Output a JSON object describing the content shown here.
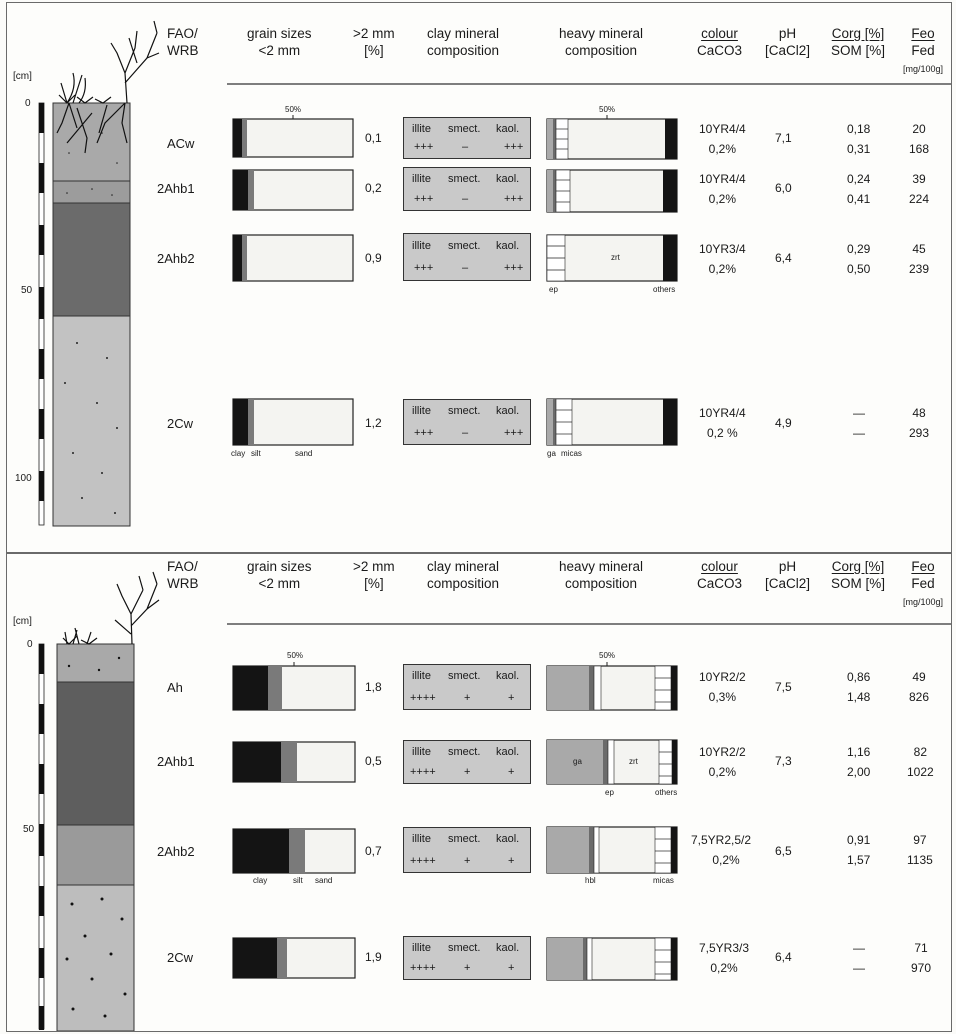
{
  "headers": {
    "fao_wrb": "FAO/\nWRB",
    "grain_sizes": "grain sizes\n<2 mm",
    "coarse": ">2 mm\n[%]",
    "clay_mineral": "clay mineral\ncomposition",
    "heavy_mineral": "heavy mineral\ncomposition",
    "colour": "colour",
    "caco3": "CaCO3",
    "ph": "pH",
    "cacl2": "[CaCl2]",
    "corg": "Corg [%]",
    "som": "SOM [%]",
    "feo": "Feo",
    "fed": "Fed",
    "fe_unit": "[mg/100g]",
    "cm": "[cm]"
  },
  "labels": {
    "fifty": "50%",
    "illite": "illite",
    "smect": "smect.",
    "kaol": "kaol.",
    "clay": "clay",
    "silt": "silt",
    "sand": "sand",
    "ep": "ep",
    "others": "others",
    "zrt": "zrt",
    "ga": "ga",
    "micas": "micas",
    "hbl": "hbl",
    "dash": "—"
  },
  "profile1": {
    "depth_ticks": [
      "0",
      "50",
      "100"
    ],
    "horizons": [
      {
        "name": "ACw",
        "coarse": "0,1",
        "cm": [
          "+++",
          "–",
          "+++"
        ],
        "colour": "10YR4/4",
        "caco3": "0,2%",
        "ph": "7,1",
        "corg": "0,18",
        "som": "0,31",
        "feo": "20",
        "fed": "168",
        "clay": 6,
        "silt": 3
      },
      {
        "name": "2Ahb1",
        "coarse": "0,2",
        "cm": [
          "+++",
          "–",
          "+++"
        ],
        "colour": "10YR4/4",
        "caco3": "0,2%",
        "ph": "6,0",
        "corg": "0,24",
        "som": "0,41",
        "feo": "39",
        "fed": "224",
        "clay": 12,
        "silt": 5
      },
      {
        "name": "2Ahb2",
        "coarse": "0,9",
        "cm": [
          "+++",
          "–",
          "+++"
        ],
        "colour": "10YR3/4",
        "caco3": "0,2%",
        "ph": "6,4",
        "corg": "0,29",
        "som": "0,50",
        "feo": "45",
        "fed": "239",
        "clay": 6,
        "silt": 3
      },
      {
        "name": "2Cw",
        "coarse": "1,2",
        "cm": [
          "+++",
          "–",
          "+++"
        ],
        "colour": "10YR4/4",
        "caco3": "0,2 %",
        "ph": "4,9",
        "corg": "—",
        "som": "—",
        "feo": "48",
        "fed": "293",
        "clay": 12,
        "silt": 5
      }
    ]
  },
  "profile2": {
    "depth_ticks": [
      "0",
      "50"
    ],
    "horizons": [
      {
        "name": "Ah",
        "coarse": "1,8",
        "cm": [
          "++++",
          "+",
          "+"
        ],
        "colour": "10YR2/2",
        "caco3": "0,3%",
        "ph": "7,5",
        "corg": "0,86",
        "som": "1,48",
        "feo": "49",
        "fed": "826",
        "clay": 29,
        "silt": 12
      },
      {
        "name": "2Ahb1",
        "coarse": "0,5",
        "cm": [
          "++++",
          "+",
          "+"
        ],
        "colour": "10YR2/2",
        "caco3": "0,2%",
        "ph": "7,3",
        "corg": "1,16",
        "som": "2,00",
        "feo": "82",
        "fed": "1022",
        "clay": 40,
        "silt": 13
      },
      {
        "name": "2Ahb2",
        "coarse": "0,7",
        "cm": [
          "++++",
          "+",
          "+"
        ],
        "colour": "7,5YR2,5/2",
        "caco3": "0,2%",
        "ph": "6,5",
        "corg": "0,91",
        "som": "1,57",
        "feo": "97",
        "fed": "1135",
        "clay": 47,
        "silt": 13
      },
      {
        "name": "2Cw",
        "coarse": "1,9",
        "cm": [
          "++++",
          "+",
          "+"
        ],
        "colour": "7,5YR3/3",
        "caco3": "0,2%",
        "ph": "6,4",
        "corg": "—",
        "som": "—",
        "feo": "71",
        "fed": "970",
        "clay": 37,
        "silt": 8
      }
    ]
  },
  "colors": {
    "black": "#141414",
    "silt": "#7a7a7a",
    "box": "#c9c9c9",
    "grey": "#a9a9a9",
    "dark": "#6b6b6b",
    "sand": "#f4f4f1"
  }
}
